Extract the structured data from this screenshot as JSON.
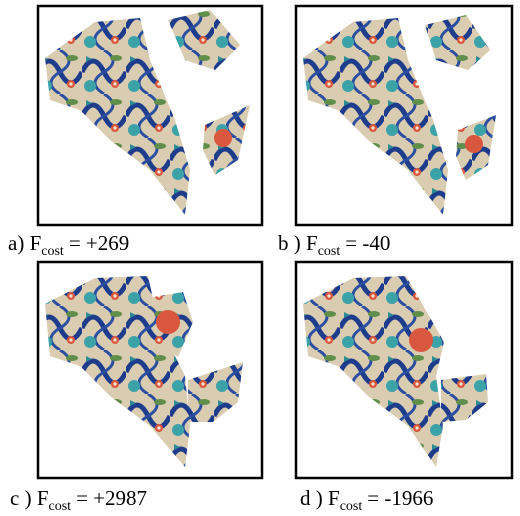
{
  "panels": [
    {
      "label": "a)",
      "symbol": "F",
      "subscript": "cost",
      "rest": "= +269"
    },
    {
      "label": "b )",
      "symbol": "F",
      "subscript": "cost",
      "rest": "= -40"
    },
    {
      "label": "c )",
      "symbol": "F",
      "subscript": "cost",
      "rest": "= +2987"
    },
    {
      "label": "d )",
      "symbol": "F",
      "subscript": "cost",
      "rest": "= -1966"
    }
  ]
}
